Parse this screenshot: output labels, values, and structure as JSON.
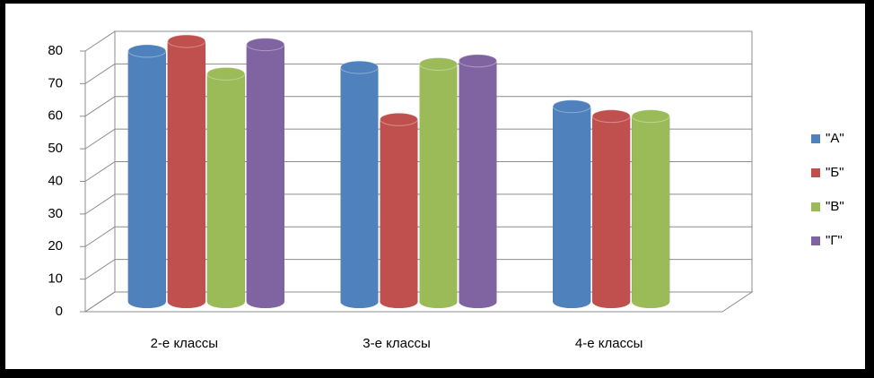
{
  "chart_data": {
    "type": "bar",
    "categories": [
      "2-е классы",
      "3-е классы",
      "4-е классы"
    ],
    "series": [
      {
        "name": "\"А\"",
        "color": "#4f81bd",
        "values": [
          77,
          72,
          60
        ]
      },
      {
        "name": "\"Б\"",
        "color": "#c0504d",
        "values": [
          80,
          56,
          57
        ]
      },
      {
        "name": "\"В\"",
        "color": "#9bbb59",
        "values": [
          70,
          73,
          57
        ]
      },
      {
        "name": "\"Г\"",
        "color": "#8064a2",
        "values": [
          79,
          74,
          null
        ]
      }
    ],
    "ylim": [
      0,
      80
    ],
    "yticks": [
      0,
      10,
      20,
      30,
      40,
      50,
      60,
      70,
      80
    ],
    "grid": true,
    "legend": "right"
  }
}
